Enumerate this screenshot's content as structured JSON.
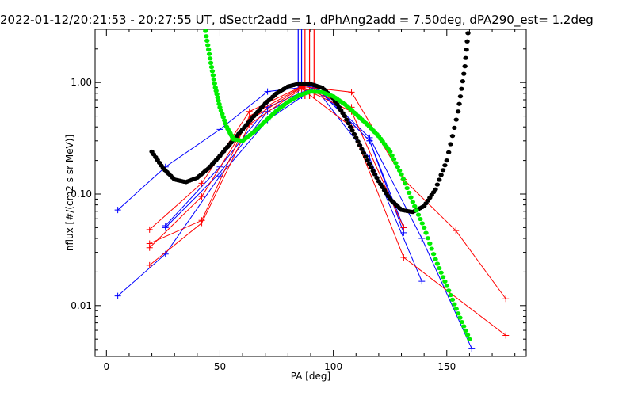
{
  "chart_data": {
    "type": "line",
    "title": "2022-01-12/20:21:53 - 20:27:55 UT, dSectr2add = 1, dPhAng2add = 7.50deg, dPA290_est=    1.2deg",
    "xlabel": "PA [deg]",
    "ylabel": "nflux [#/(cm2 s sr MeV)]",
    "xlim": [
      -5,
      185
    ],
    "ylim": [
      0.0035,
      3.0
    ],
    "yscale": "log",
    "grid": false,
    "x_ticks": [
      0,
      50,
      100,
      150
    ],
    "y_ticks": [
      {
        "value": 0.01,
        "label": "0.01"
      },
      {
        "value": 0.1,
        "label": "0.10"
      },
      {
        "value": 1.0,
        "label": "1.00"
      }
    ],
    "vertical_lines": [
      {
        "x": 84.5,
        "color": "#0000ff"
      },
      {
        "x": 86.0,
        "color": "#0000ff"
      },
      {
        "x": 87.5,
        "color": "#ff0000"
      },
      {
        "x": 89.5,
        "color": "#ff0000"
      },
      {
        "x": 91.5,
        "color": "#ff0000"
      }
    ],
    "series": [
      {
        "color": "#0000ff",
        "style": "line-plus",
        "x": [
          5,
          26,
          50,
          71,
          92,
          116,
          139,
          161
        ],
        "y": [
          0.072,
          0.175,
          0.38,
          0.83,
          0.93,
          0.32,
          0.04,
          0.0041
        ]
      },
      {
        "color": "#0000ff",
        "style": "line-plus",
        "x": [
          5,
          26,
          50,
          71,
          92,
          116,
          139
        ],
        "y": [
          0.0122,
          0.029,
          0.145,
          0.46,
          0.9,
          0.21,
          0.0165
        ]
      },
      {
        "color": "#0000ff",
        "style": "line-plus",
        "x": [
          26,
          50,
          71,
          92,
          116,
          131
        ],
        "y": [
          0.05,
          0.155,
          0.55,
          0.91,
          0.3,
          0.045
        ]
      },
      {
        "color": "#0000ff",
        "style": "line-plus",
        "x": [
          26,
          50,
          71,
          92,
          116,
          131
        ],
        "y": [
          0.052,
          0.175,
          0.6,
          0.92,
          0.3,
          0.05
        ]
      },
      {
        "color": "#ff0000",
        "style": "line-plus",
        "x": [
          19,
          42,
          63,
          86,
          108,
          131,
          154,
          176
        ],
        "y": [
          0.048,
          0.125,
          0.55,
          0.92,
          0.82,
          0.135,
          0.047,
          0.0115
        ]
      },
      {
        "color": "#ff0000",
        "style": "line-plus",
        "x": [
          19,
          42,
          63,
          86,
          108,
          131,
          176
        ],
        "y": [
          0.023,
          0.055,
          0.42,
          0.88,
          0.4,
          0.027,
          0.0054
        ]
      },
      {
        "color": "#ff0000",
        "style": "line-plus",
        "x": [
          19,
          42,
          63,
          86,
          108,
          131
        ],
        "y": [
          0.033,
          0.095,
          0.46,
          0.9,
          0.55,
          0.05
        ]
      },
      {
        "color": "#ff0000",
        "style": "line-plus",
        "x": [
          19,
          42,
          63,
          86,
          108
        ],
        "y": [
          0.036,
          0.058,
          0.5,
          0.91,
          0.6
        ]
      },
      {
        "color": "#000000",
        "style": "thick-dotted",
        "x": [
          20,
          25,
          30,
          35,
          40,
          45,
          50,
          55,
          60,
          65,
          70,
          75,
          80,
          85,
          90,
          95,
          100,
          105,
          110,
          115,
          120,
          125,
          130,
          135,
          140,
          145,
          150,
          155,
          158,
          160
        ],
        "y": [
          0.24,
          0.17,
          0.135,
          0.128,
          0.14,
          0.17,
          0.22,
          0.29,
          0.38,
          0.5,
          0.65,
          0.8,
          0.92,
          0.98,
          0.97,
          0.9,
          0.72,
          0.5,
          0.32,
          0.2,
          0.13,
          0.09,
          0.072,
          0.069,
          0.078,
          0.11,
          0.2,
          0.55,
          1.4,
          3.9
        ]
      },
      {
        "color": "#00ee00",
        "style": "thick-dotted",
        "x": [
          42,
          44,
          46,
          48,
          50,
          53,
          56,
          60,
          65,
          70,
          75,
          80,
          85,
          90,
          95,
          100,
          105,
          110,
          115,
          120,
          125,
          130,
          135,
          140,
          145,
          150,
          155,
          160
        ],
        "y": [
          5.0,
          2.6,
          1.5,
          0.9,
          0.6,
          0.4,
          0.31,
          0.3,
          0.36,
          0.45,
          0.56,
          0.67,
          0.77,
          0.83,
          0.82,
          0.75,
          0.64,
          0.52,
          0.42,
          0.33,
          0.24,
          0.15,
          0.085,
          0.05,
          0.026,
          0.015,
          0.0085,
          0.005
        ]
      }
    ]
  }
}
